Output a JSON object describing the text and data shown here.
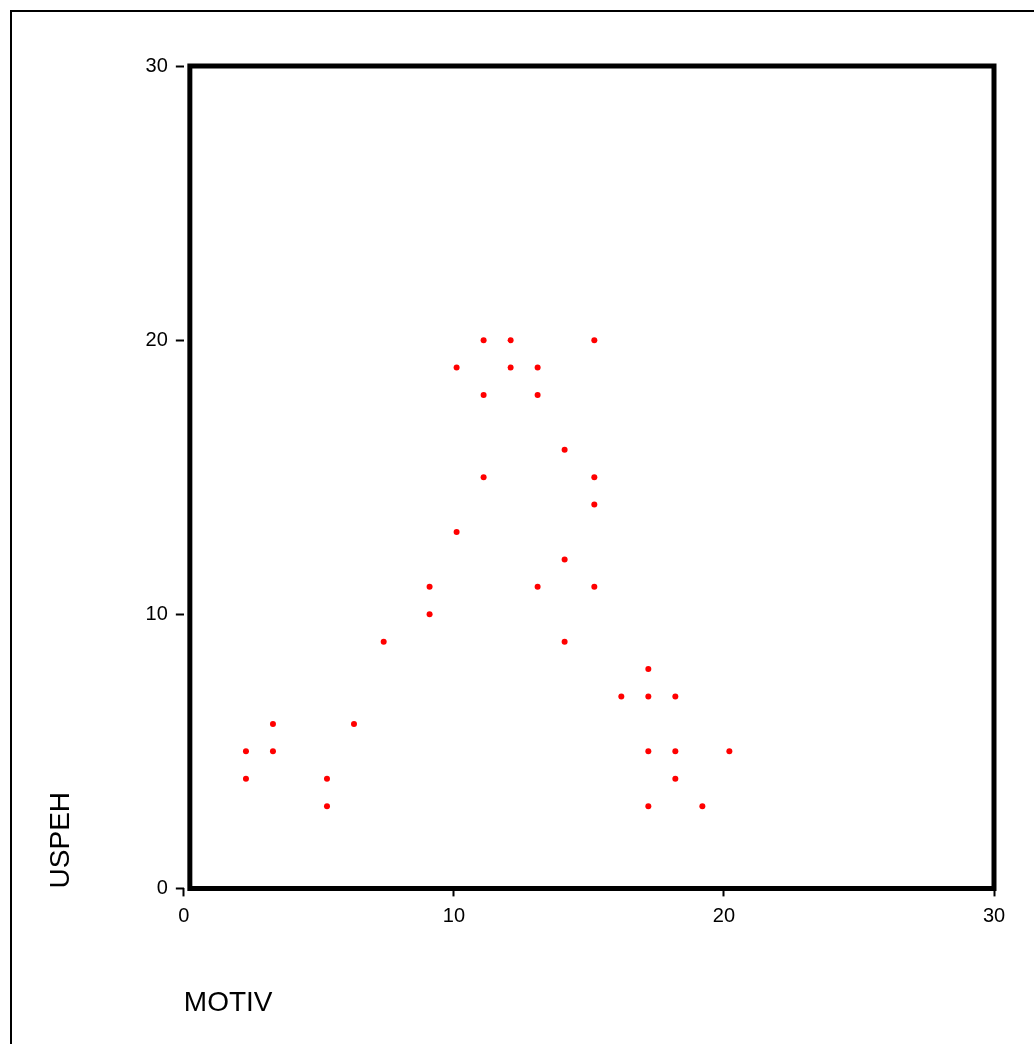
{
  "chart_data": {
    "type": "scatter",
    "xlabel": "MOTIV",
    "ylabel": "USPEH",
    "x": [
      2.3,
      2.3,
      3.3,
      3.3,
      5.3,
      5.3,
      6.3,
      7.4,
      9.1,
      9.1,
      10.1,
      10.1,
      11.1,
      11.1,
      11.1,
      12.1,
      12.1,
      13.1,
      13.1,
      13.1,
      14.1,
      14.1,
      14.1,
      15.2,
      15.2,
      15.2,
      15.2,
      16.2,
      17.2,
      17.2,
      17.2,
      17.2,
      18.2,
      18.2,
      18.2,
      19.2,
      20.2
    ],
    "series": [
      {
        "color": "#ff0000",
        "values": [
          5,
          4,
          6,
          5,
          4,
          3,
          6,
          9,
          11,
          10,
          19,
          13,
          20,
          18,
          15,
          20,
          19,
          19,
          18,
          11,
          16,
          12,
          9,
          20,
          15,
          14,
          11,
          7,
          8,
          7,
          5,
          3,
          7,
          5,
          4,
          3,
          5
        ]
      }
    ],
    "xlim": [
      0,
      30
    ],
    "xticks": [
      0,
      10,
      20,
      30
    ],
    "ylim": [
      0,
      30
    ],
    "yticks": [
      0,
      10,
      20,
      30
    ],
    "grid": false,
    "legend": false,
    "marker": "circle"
  }
}
